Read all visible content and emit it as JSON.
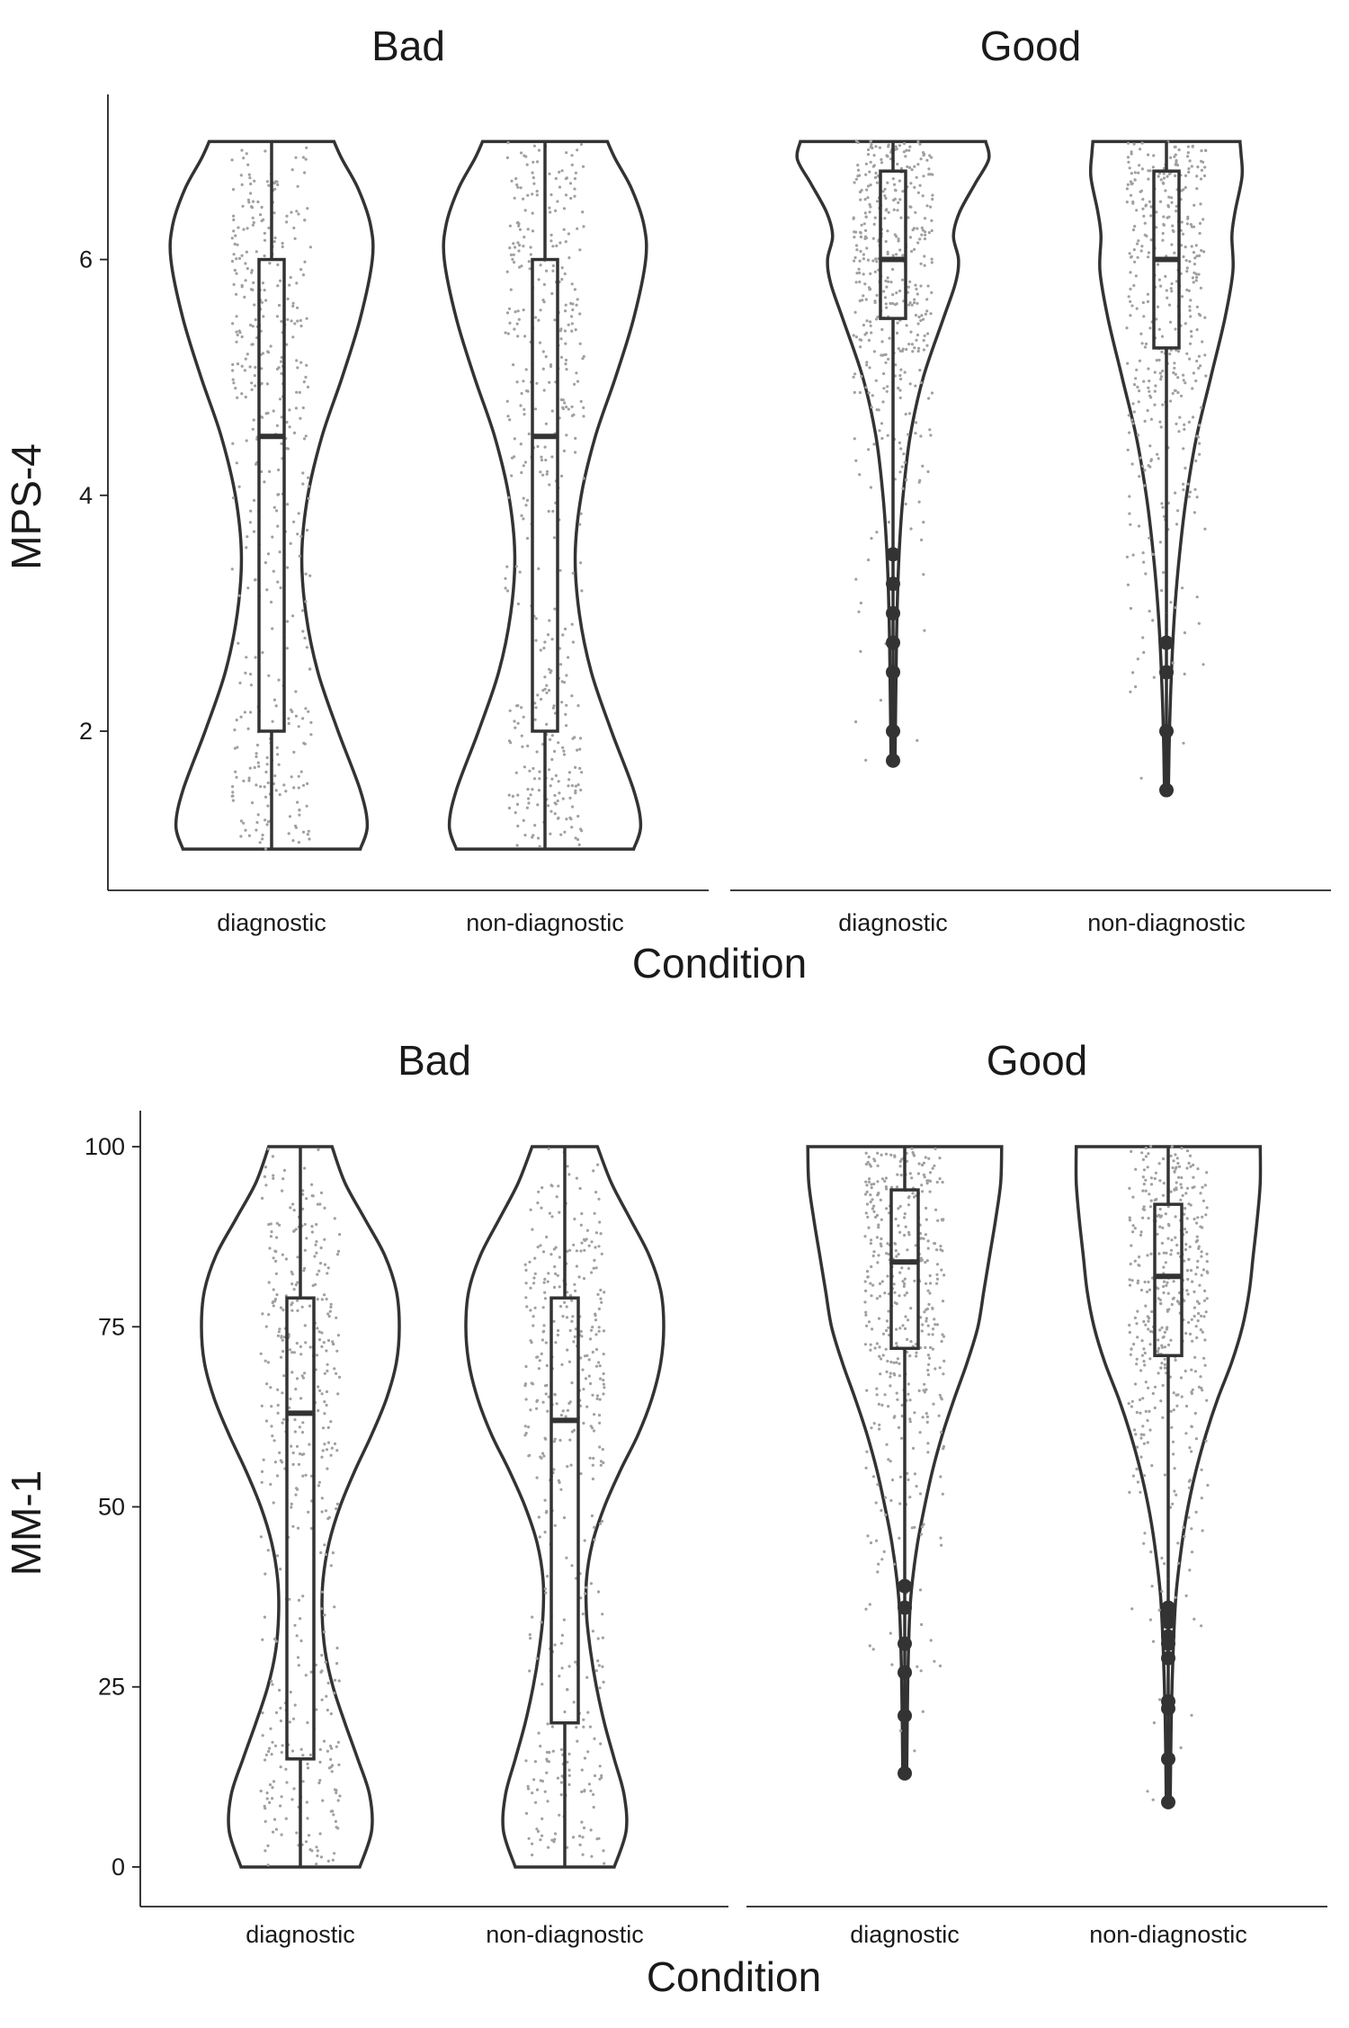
{
  "chart_data": [
    {
      "type": "violin",
      "ylabel": "MPS-4",
      "xlabel": "Condition",
      "categories": [
        "diagnostic",
        "non-diagnostic"
      ],
      "ylim": [
        0.65,
        7.4
      ],
      "yticks": [
        2,
        4,
        6
      ],
      "ytick_labels": [
        "2",
        "4",
        "6"
      ],
      "facets": [
        {
          "title": "Bad",
          "groups": [
            {
              "category": "diagnostic",
              "min": 1,
              "q1": 2,
              "median": 4.5,
              "q3": 6,
              "max": 7,
              "outliers": [],
              "density": [
                [
                  1,
                  0.88
                ],
                [
                  1.2,
                  0.95
                ],
                [
                  1.5,
                  0.88
                ],
                [
                  2,
                  0.66
                ],
                [
                  2.5,
                  0.46
                ],
                [
                  3,
                  0.34
                ],
                [
                  3.5,
                  0.3
                ],
                [
                  4,
                  0.36
                ],
                [
                  4.5,
                  0.5
                ],
                [
                  5,
                  0.7
                ],
                [
                  5.5,
                  0.88
                ],
                [
                  6,
                  1
                ],
                [
                  6.3,
                  0.98
                ],
                [
                  6.6,
                  0.86
                ],
                [
                  6.85,
                  0.7
                ],
                [
                  7,
                  0.62
                ]
              ]
            },
            {
              "category": "non-diagnostic",
              "min": 1,
              "q1": 2,
              "median": 4.5,
              "q3": 6,
              "max": 7,
              "outliers": [],
              "density": [
                [
                  1,
                  0.88
                ],
                [
                  1.2,
                  0.95
                ],
                [
                  1.5,
                  0.88
                ],
                [
                  2,
                  0.66
                ],
                [
                  2.5,
                  0.46
                ],
                [
                  3,
                  0.34
                ],
                [
                  3.5,
                  0.3
                ],
                [
                  4,
                  0.36
                ],
                [
                  4.5,
                  0.5
                ],
                [
                  5,
                  0.7
                ],
                [
                  5.5,
                  0.88
                ],
                [
                  6,
                  1
                ],
                [
                  6.3,
                  0.98
                ],
                [
                  6.6,
                  0.86
                ],
                [
                  6.85,
                  0.7
                ],
                [
                  7,
                  0.62
                ]
              ]
            }
          ]
        },
        {
          "title": "Good",
          "groups": [
            {
              "category": "diagnostic",
              "min": 3.75,
              "q1": 5.5,
              "median": 6,
              "q3": 6.75,
              "max": 7,
              "outliers": [
                3.5,
                3.25,
                3.0,
                2.75,
                2.5,
                2.0,
                1.75
              ],
              "density": [
                [
                  1.75,
                  0.02
                ],
                [
                  2.5,
                  0.03
                ],
                [
                  3,
                  0.04
                ],
                [
                  3.5,
                  0.06
                ],
                [
                  4,
                  0.1
                ],
                [
                  4.5,
                  0.17
                ],
                [
                  5,
                  0.3
                ],
                [
                  5.5,
                  0.5
                ],
                [
                  5.8,
                  0.62
                ],
                [
                  6,
                  0.65
                ],
                [
                  6.2,
                  0.6
                ],
                [
                  6.4,
                  0.66
                ],
                [
                  6.65,
                  0.82
                ],
                [
                  6.85,
                  0.95
                ],
                [
                  7,
                  0.92
                ]
              ]
            },
            {
              "category": "non-diagnostic",
              "min": 3,
              "q1": 5.25,
              "median": 6,
              "q3": 6.75,
              "max": 7,
              "outliers": [
                2.75,
                2.5,
                2.0,
                1.5
              ],
              "density": [
                [
                  1.5,
                  0.02
                ],
                [
                  2,
                  0.03
                ],
                [
                  2.5,
                  0.05
                ],
                [
                  3,
                  0.08
                ],
                [
                  3.5,
                  0.13
                ],
                [
                  4,
                  0.2
                ],
                [
                  4.5,
                  0.3
                ],
                [
                  5,
                  0.44
                ],
                [
                  5.5,
                  0.58
                ],
                [
                  5.9,
                  0.66
                ],
                [
                  6.2,
                  0.65
                ],
                [
                  6.4,
                  0.68
                ],
                [
                  6.7,
                  0.75
                ],
                [
                  6.9,
                  0.74
                ],
                [
                  7,
                  0.73
                ]
              ]
            }
          ]
        }
      ]
    },
    {
      "type": "violin",
      "ylabel": "MM-1",
      "xlabel": "Condition",
      "categories": [
        "diagnostic",
        "non-diagnostic"
      ],
      "ylim": [
        -5.5,
        105
      ],
      "yticks": [
        0,
        25,
        50,
        75,
        100
      ],
      "ytick_labels": [
        "0",
        "25",
        "50",
        "75",
        "100"
      ],
      "facets": [
        {
          "title": "Bad",
          "groups": [
            {
              "category": "diagnostic",
              "min": 0,
              "q1": 15,
              "median": 63,
              "q3": 79,
              "max": 100,
              "outliers": [],
              "density": [
                [
                  0,
                  0.6
                ],
                [
                  5,
                  0.72
                ],
                [
                  10,
                  0.7
                ],
                [
                  15,
                  0.58
                ],
                [
                  20,
                  0.45
                ],
                [
                  25,
                  0.33
                ],
                [
                  30,
                  0.25
                ],
                [
                  35,
                  0.22
                ],
                [
                  40,
                  0.23
                ],
                [
                  45,
                  0.29
                ],
                [
                  50,
                  0.4
                ],
                [
                  55,
                  0.55
                ],
                [
                  60,
                  0.72
                ],
                [
                  65,
                  0.87
                ],
                [
                  70,
                  0.97
                ],
                [
                  75,
                  1
                ],
                [
                  80,
                  0.97
                ],
                [
                  85,
                  0.85
                ],
                [
                  90,
                  0.65
                ],
                [
                  95,
                  0.45
                ],
                [
                  100,
                  0.32
                ]
              ]
            },
            {
              "category": "non-diagnostic",
              "min": 0,
              "q1": 20,
              "median": 62,
              "q3": 79,
              "max": 100,
              "outliers": [],
              "density": [
                [
                  0,
                  0.5
                ],
                [
                  5,
                  0.62
                ],
                [
                  10,
                  0.6
                ],
                [
                  15,
                  0.5
                ],
                [
                  20,
                  0.4
                ],
                [
                  25,
                  0.32
                ],
                [
                  30,
                  0.26
                ],
                [
                  35,
                  0.22
                ],
                [
                  40,
                  0.22
                ],
                [
                  45,
                  0.28
                ],
                [
                  50,
                  0.4
                ],
                [
                  55,
                  0.56
                ],
                [
                  60,
                  0.74
                ],
                [
                  65,
                  0.88
                ],
                [
                  70,
                  0.97
                ],
                [
                  75,
                  1
                ],
                [
                  80,
                  0.97
                ],
                [
                  85,
                  0.85
                ],
                [
                  90,
                  0.66
                ],
                [
                  95,
                  0.47
                ],
                [
                  100,
                  0.33
                ]
              ]
            }
          ]
        },
        {
          "title": "Good",
          "groups": [
            {
              "category": "diagnostic",
              "min": 40,
              "q1": 72,
              "median": 84,
              "q3": 94,
              "max": 100,
              "outliers": [
                39,
                36,
                31,
                27,
                21,
                13
              ],
              "density": [
                [
                  13,
                  0.02
                ],
                [
                  25,
                  0.03
                ],
                [
                  35,
                  0.05
                ],
                [
                  40,
                  0.08
                ],
                [
                  45,
                  0.13
                ],
                [
                  50,
                  0.2
                ],
                [
                  55,
                  0.28
                ],
                [
                  60,
                  0.38
                ],
                [
                  65,
                  0.5
                ],
                [
                  70,
                  0.63
                ],
                [
                  75,
                  0.74
                ],
                [
                  80,
                  0.8
                ],
                [
                  85,
                  0.86
                ],
                [
                  90,
                  0.92
                ],
                [
                  95,
                  0.97
                ],
                [
                  100,
                  0.98
                ]
              ]
            },
            {
              "category": "non-diagnostic",
              "min": 40,
              "q1": 71,
              "median": 82,
              "q3": 92,
              "max": 100,
              "outliers": [
                36,
                35,
                34,
                32,
                31,
                29,
                23,
                22,
                15,
                9
              ],
              "density": [
                [
                  9,
                  0.02
                ],
                [
                  20,
                  0.03
                ],
                [
                  30,
                  0.05
                ],
                [
                  38,
                  0.08
                ],
                [
                  45,
                  0.14
                ],
                [
                  50,
                  0.2
                ],
                [
                  55,
                  0.28
                ],
                [
                  60,
                  0.38
                ],
                [
                  65,
                  0.5
                ],
                [
                  70,
                  0.64
                ],
                [
                  75,
                  0.75
                ],
                [
                  80,
                  0.82
                ],
                [
                  85,
                  0.86
                ],
                [
                  90,
                  0.9
                ],
                [
                  95,
                  0.93
                ],
                [
                  100,
                  0.93
                ]
              ]
            }
          ]
        }
      ]
    }
  ]
}
